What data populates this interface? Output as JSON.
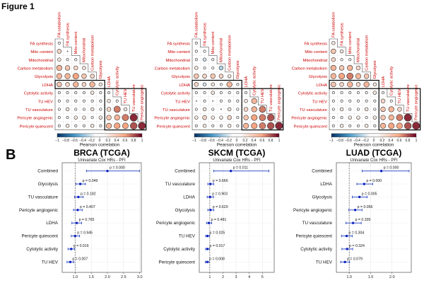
{
  "figure_title": "Figure 1",
  "panel_b_label": "B",
  "colorbar": {
    "label": "Pearson correlation",
    "ticks": [
      "−1",
      "−0.8",
      "−0.6",
      "−0.4",
      "−0.2",
      "0",
      "0.2",
      "0.4",
      "0.6",
      "0.8",
      "1"
    ],
    "neg_color": "#2166ac",
    "pos_color": "#b2182b"
  },
  "correlation_variables": [
    "FA synthesis",
    "Mito content",
    "Mitochondrial",
    "Carbon metabolism",
    "Glycolysis",
    "LDHA",
    "Cytolytic activity",
    "TU HEV",
    "TU vasculature",
    "Pericyte angiogenic",
    "Pericyte quiescent"
  ],
  "column_labels": [
    "FA catabolism",
    "FA synthesis",
    "Mito content",
    "Mitochondrial",
    "Carbon metabolism",
    "Glycolysis",
    "LDHA",
    "Cytolytic activity",
    "TU HEV",
    "TU vasculature",
    "Pericyte angiogenic"
  ],
  "chart_data": [
    {
      "type": "heatmap",
      "panel": "BRCA correlation",
      "rows": [
        "FA synthesis",
        "Mito content",
        "Mitochondrial",
        "Carbon metabolism",
        "Glycolysis",
        "LDHA",
        "Cytolytic activity",
        "TU HEV",
        "TU vasculature",
        "Pericyte angiogenic",
        "Pericyte quiescent"
      ],
      "columns": [
        "FA catabolism",
        "FA synthesis",
        "Mito content",
        "Mitochondrial",
        "Carbon metabolism",
        "Glycolysis",
        "LDHA",
        "Cytolytic activity",
        "TU HEV",
        "TU vasculature",
        "Pericyte angiogenic"
      ],
      "values": [
        [
          0.1
        ],
        [
          0.3,
          0.0
        ],
        [
          0.2,
          0.1,
          0.1
        ],
        [
          0.5,
          0.4,
          0.3,
          0.2
        ],
        [
          0.5,
          0.5,
          0.6,
          0.4,
          0.3
        ],
        [
          0.4,
          0.3,
          0.5,
          0.3,
          0.5,
          0.2
        ],
        [
          0.1,
          0.1,
          0.1,
          0.1,
          0.2,
          0.1,
          0.1
        ],
        [
          0.1,
          0.1,
          0.1,
          0.1,
          0.1,
          0.1,
          0.2,
          0.1
        ],
        [
          0.1,
          0.2,
          0.1,
          0.1,
          0.2,
          0.1,
          0.3,
          0.7,
          0.2
        ],
        [
          0.1,
          0.1,
          0.2,
          0.2,
          0.1,
          0.2,
          0.4,
          0.5,
          0.7,
          0.9
        ],
        [
          0.1,
          0.2,
          0.1,
          0.1,
          0.2,
          0.1,
          0.5,
          0.6,
          0.6,
          0.8,
          0.9
        ]
      ],
      "scale": [
        -1,
        1
      ]
    },
    {
      "type": "heatmap",
      "panel": "SKCM correlation",
      "rows": [
        "FA synthesis",
        "Mito content",
        "Mitochondrial",
        "Carbon metabolism",
        "Glycolysis",
        "LDHA",
        "Cytolytic activity",
        "TU HEV",
        "TU vasculature",
        "Pericyte angiogenic",
        "Pericyte quiescent"
      ],
      "columns": [
        "FA catabolism",
        "FA synthesis",
        "Mito content",
        "Mitochondrial",
        "Carbon metabolism",
        "Glycolysis",
        "LDHA",
        "Cytolytic activity",
        "TU HEV",
        "TU vasculature",
        "Pericyte angiogenic"
      ],
      "values": [
        [
          0.1
        ],
        [
          0.1,
          -0.1
        ],
        [
          -0.1,
          -0.2,
          0.1
        ],
        [
          0.2,
          -0.1,
          0.1,
          -0.3
        ],
        [
          0.4,
          0.3,
          0.4,
          0.3,
          0.2
        ],
        [
          0.3,
          -0.2,
          0.2,
          0.1,
          0.5,
          0.1
        ],
        [
          0.1,
          -0.1,
          0.2,
          -0.1,
          0.1,
          0.1,
          0.1
        ],
        [
          0.0,
          0.1,
          0.0,
          -0.1,
          0.1,
          0.1,
          0.2,
          0.5
        ],
        [
          0.1,
          0.2,
          0.1,
          0.0,
          0.2,
          0.1,
          0.3,
          0.5,
          0.7
        ],
        [
          0.2,
          0.3,
          0.2,
          0.2,
          0.3,
          0.1,
          0.4,
          0.6,
          0.7,
          0.8
        ],
        [
          0.1,
          0.2,
          0.1,
          0.1,
          0.2,
          0.1,
          0.5,
          0.6,
          0.7,
          0.8,
          0.9
        ]
      ],
      "scale": [
        -1,
        1
      ]
    },
    {
      "type": "heatmap",
      "panel": "LUAD correlation",
      "rows": [
        "FA synthesis",
        "Mito content",
        "Mitochondrial",
        "Carbon metabolism",
        "Glycolysis",
        "LDHA",
        "Cytolytic activity",
        "TU HEV",
        "TU vasculature",
        "Pericyte angiogenic",
        "Pericyte quiescent"
      ],
      "columns": [
        "FA catabolism",
        "FA synthesis",
        "Mito content",
        "Mitochondrial",
        "Carbon metabolism",
        "Glycolysis",
        "LDHA",
        "Cytolytic activity",
        "TU HEV",
        "TU vasculature",
        "Pericyte angiogenic"
      ],
      "values": [
        [
          0.2
        ],
        [
          0.4,
          0.2
        ],
        [
          0.3,
          0.1,
          0.1
        ],
        [
          0.5,
          0.4,
          0.5,
          0.3
        ],
        [
          0.5,
          0.6,
          0.7,
          0.5,
          0.4
        ],
        [
          0.4,
          0.3,
          0.5,
          0.3,
          0.5,
          0.2
        ],
        [
          0.1,
          0.1,
          0.1,
          0.1,
          0.1,
          0.2,
          0.1
        ],
        [
          0.1,
          0.1,
          0.1,
          0.1,
          0.1,
          0.1,
          0.3,
          0.1
        ],
        [
          0.1,
          0.2,
          0.1,
          0.1,
          0.2,
          0.1,
          0.4,
          0.5,
          0.3
        ],
        [
          0.1,
          0.1,
          0.2,
          0.2,
          0.1,
          0.2,
          0.4,
          0.5,
          0.7,
          0.9
        ],
        [
          0.1,
          0.2,
          0.1,
          0.1,
          0.2,
          0.1,
          0.5,
          0.6,
          0.6,
          0.8,
          0.9
        ]
      ],
      "scale": [
        -1,
        1
      ]
    },
    {
      "type": "scatter",
      "panel": "BRCA forest",
      "title": "BRCA (TCGA)",
      "subtitle": "Univariate Cox HRs - PFI",
      "categories": [
        "Combined",
        "Glycolysis",
        "TU vasculature",
        "Pericyte angiogenic",
        "LDHA",
        "Pericyte quiescent",
        "Cytolytic activity",
        "TU HEV"
      ],
      "hr": [
        2.0,
        1.16,
        1.1,
        1.08,
        1.05,
        1.0,
        0.88,
        0.85
      ],
      "ci_low": [
        1.35,
        1.02,
        0.98,
        0.95,
        0.9,
        0.88,
        0.78,
        0.75
      ],
      "ci_high": [
        3.0,
        1.32,
        1.25,
        1.22,
        1.2,
        1.14,
        0.98,
        0.96
      ],
      "pvalues": [
        "p = 0.000",
        "p = 0.049",
        "p = 0.182",
        "p = 0.407",
        "p = 0.765",
        "p = 0.945",
        "p = 0.016",
        "p = 0.007"
      ],
      "xlim": [
        0.6,
        3.05
      ],
      "xticks": [
        "1.0",
        "1.5",
        "2.0",
        "2.5",
        "3.0"
      ],
      "xtick_values": [
        1.0,
        1.5,
        2.0,
        2.5,
        3.0
      ],
      "reference": 1.0
    },
    {
      "type": "scatter",
      "panel": "SKCM forest",
      "title": "SKCM (TCGA)",
      "subtitle": "Univariate Cox HRs - PFI",
      "categories": [
        "Combined",
        "TU vasculature",
        "LDHA",
        "Glycolysis",
        "Pericyte angiogenic",
        "TU HEV",
        "Cytolytic activity",
        "Pericyte quiescent"
      ],
      "hr": [
        2.6,
        1.05,
        1.02,
        1.05,
        0.93,
        0.82,
        0.82,
        0.8
      ],
      "ci_low": [
        1.3,
        0.85,
        0.8,
        0.85,
        0.75,
        0.68,
        0.68,
        0.66
      ],
      "ci_high": [
        5.5,
        1.3,
        1.28,
        1.3,
        1.15,
        0.97,
        0.97,
        0.95
      ],
      "pvalues": [
        "p = 0.011",
        "p = 0.666",
        "p = 0.903",
        "p = 0.620",
        "p = 0.481",
        "p = 0.025",
        "p = 0.017",
        "p = 0.008"
      ],
      "xlim": [
        0.2,
        5.9
      ],
      "xticks": [
        "1",
        "2",
        "3",
        "4",
        "5"
      ],
      "xtick_values": [
        1,
        2,
        3,
        4,
        5
      ],
      "reference": 1.0
    },
    {
      "type": "scatter",
      "panel": "LUAD forest",
      "title": "LUAD (TCGA)",
      "subtitle": "Univariate Cox HRs - PFI",
      "categories": [
        "Combined",
        "LDHA",
        "Glycolysis",
        "Pericyte angiogenic",
        "TU vasculature",
        "Pericyte quiescent",
        "Cytolytic activity",
        "TU HEV"
      ],
      "hr": [
        1.75,
        1.35,
        1.24,
        1.14,
        1.09,
        0.94,
        0.95,
        0.9
      ],
      "ci_low": [
        1.3,
        1.18,
        1.07,
        0.99,
        0.92,
        0.82,
        0.83,
        0.8
      ],
      "ci_high": [
        2.4,
        1.55,
        1.42,
        1.3,
        1.28,
        1.07,
        1.08,
        1.01
      ],
      "pvalues": [
        "p = 0.000",
        "p = 0.000",
        "p = 0.005",
        "p = 0.056",
        "p = 0.335",
        "p = 0.304",
        "p = 0.324",
        "p = 0.079"
      ],
      "xlim": [
        0.7,
        2.45
      ],
      "xticks": [
        "1.0",
        "1.5",
        "2.0"
      ],
      "xtick_values": [
        1.0,
        1.5,
        2.0
      ],
      "reference": 1.0
    }
  ]
}
